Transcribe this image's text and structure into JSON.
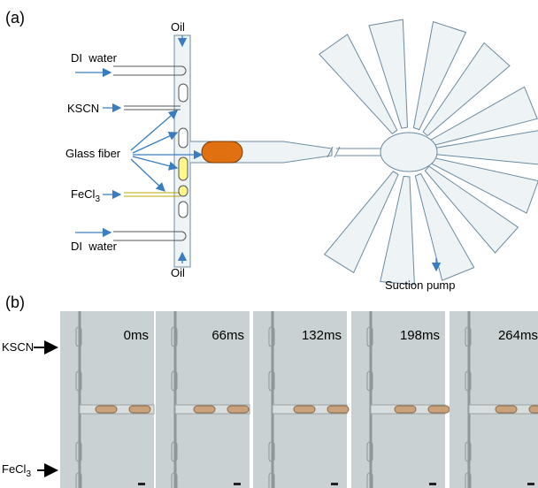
{
  "panel_a": {
    "label": "(a)",
    "oil_top": "Oil",
    "di_water_top": "DI  water",
    "kscn": "KSCN",
    "glass_fiber": "Glass fiber",
    "fecl3": {
      "base": "FeCl",
      "sub": "3"
    },
    "di_water_bottom": "DI  water",
    "oil_bottom": "Oil",
    "suction_pump": "Suction pump"
  },
  "panel_b": {
    "label": "(b)",
    "kscn": "KSCN",
    "fecl3": {
      "base": "FeCl",
      "sub": "3"
    },
    "times": [
      "0ms",
      "66ms",
      "132ms",
      "198ms",
      "264ms"
    ]
  }
}
